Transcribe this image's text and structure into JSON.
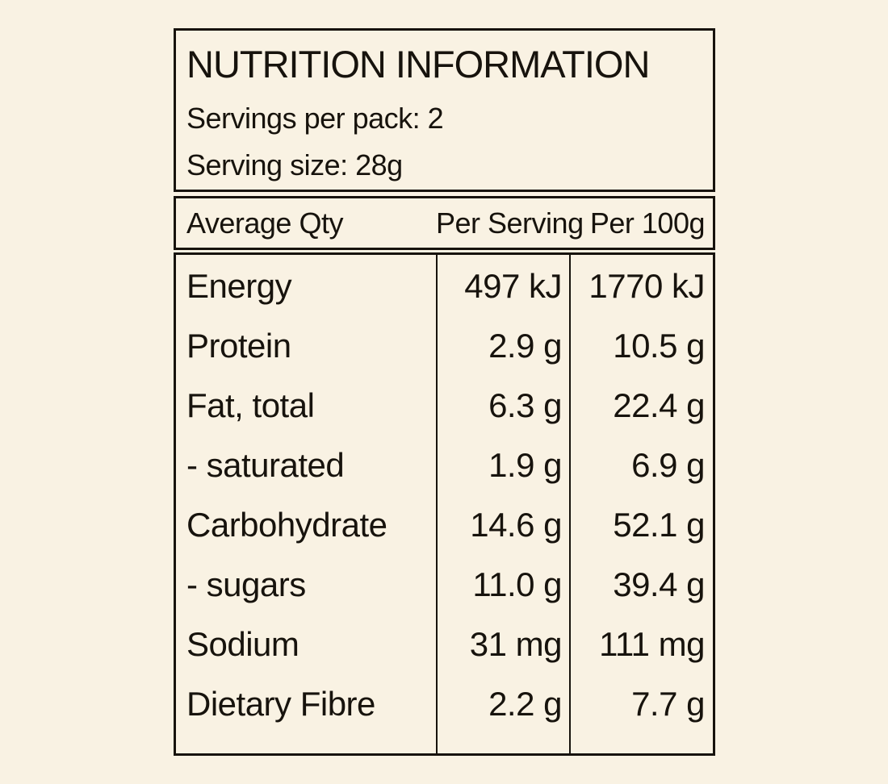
{
  "label": {
    "title": "NUTRITION INFORMATION",
    "servings_per_pack": "Servings per pack: 2",
    "serving_size": "Serving size: 28g",
    "columns": {
      "name": "Average Qty",
      "per_serving": "Per Serving",
      "per_100g": "Per 100g"
    },
    "rows": [
      {
        "name": "Energy",
        "per_serving": "497 kJ",
        "per_100g": "1770 kJ"
      },
      {
        "name": "Protein",
        "per_serving": "2.9 g",
        "per_100g": "10.5 g"
      },
      {
        "name": "Fat, total",
        "per_serving": "6.3 g",
        "per_100g": "22.4 g"
      },
      {
        "name": "- saturated",
        "per_serving": "1.9 g",
        "per_100g": "6.9 g"
      },
      {
        "name": "Carbohydrate",
        "per_serving": "14.6 g",
        "per_100g": "52.1 g"
      },
      {
        "name": "- sugars",
        "per_serving": "11.0 g",
        "per_100g": "39.4 g"
      },
      {
        "name": "Sodium",
        "per_serving": "31 mg",
        "per_100g": "111 mg"
      },
      {
        "name": "Dietary Fibre",
        "per_serving": "2.2 g",
        "per_100g": "7.7 g"
      }
    ],
    "colors": {
      "background": "#f9f2e3",
      "ink": "#17130d"
    }
  }
}
